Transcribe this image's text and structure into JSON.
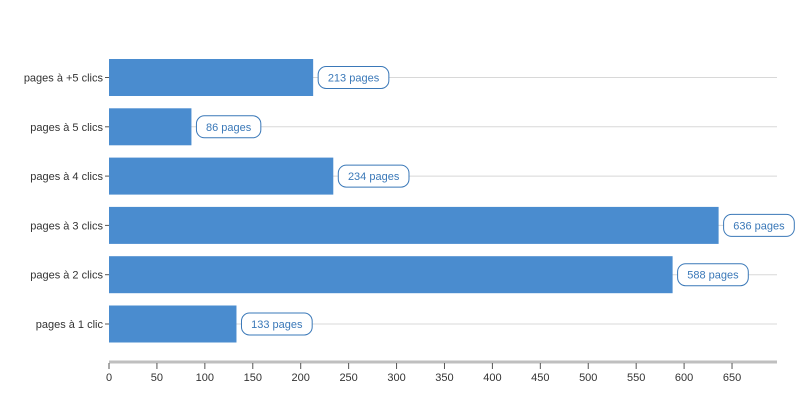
{
  "chart_data": {
    "type": "bar",
    "orientation": "horizontal",
    "categories": [
      "pages à +5 clics",
      "pages à 5 clics",
      "pages à 4 clics",
      "pages à 3 clics",
      "pages à 2 clics",
      "pages à 1 clic"
    ],
    "values": [
      213,
      86,
      234,
      636,
      588,
      133
    ],
    "data_labels": [
      "213 pages",
      "86 pages",
      "234 pages",
      "636 pages",
      "588 pages",
      "133 pages"
    ],
    "x_ticks": [
      0,
      50,
      100,
      150,
      200,
      250,
      300,
      350,
      400,
      450,
      500,
      550,
      600,
      650
    ],
    "xlim": [
      0,
      700
    ],
    "grid": "horizontal lines at each category",
    "legend": "none",
    "colors": {
      "bar": "#4a8ccf",
      "label_text": "#3a78b8",
      "label_border": "#3a78b8",
      "grid": "#d8d8d8",
      "axis": "#bfbfbf",
      "tick_text": "#333333"
    }
  }
}
